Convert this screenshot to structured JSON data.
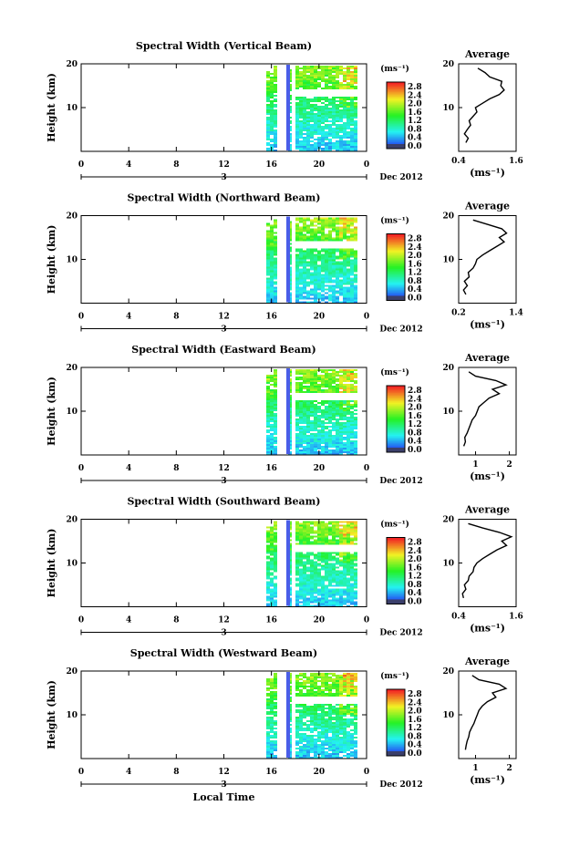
{
  "chart_data": [
    {
      "type": "heatmap",
      "title": "Spectral Width (Vertical Beam)",
      "ylabel": "Height (km)",
      "yticks": [
        "20",
        "10"
      ],
      "xticks": [
        "0",
        "4",
        "8",
        "12",
        "16",
        "20",
        "0"
      ],
      "day_label": "3",
      "date_label": "Dec 2012",
      "colorbar": {
        "unit": "(ms⁻¹)",
        "ticks": [
          "2.8",
          "2.4",
          "2.0",
          "1.6",
          "1.2",
          "0.8",
          "0.4",
          "0.0"
        ]
      },
      "profile": {
        "title": "Average",
        "yticks": [
          "20",
          "10"
        ],
        "xticks": [
          "0.4",
          "1.6"
        ],
        "xlabel": "(ms⁻¹)",
        "xlim": [
          0.4,
          1.6
        ],
        "heights": [
          2,
          3,
          4,
          5,
          6,
          7,
          8,
          9,
          10,
          11,
          12,
          13,
          14,
          15,
          16,
          17,
          18,
          19
        ],
        "values": [
          0.55,
          0.6,
          0.52,
          0.58,
          0.65,
          0.62,
          0.7,
          0.78,
          0.75,
          0.9,
          1.05,
          1.25,
          1.35,
          1.28,
          1.3,
          1.05,
          0.95,
          0.8
        ]
      }
    },
    {
      "type": "heatmap",
      "title": "Spectral Width (Northward Beam)",
      "ylabel": "Height (km)",
      "yticks": [
        "20",
        "10"
      ],
      "xticks": [
        "0",
        "4",
        "8",
        "12",
        "16",
        "20",
        "0"
      ],
      "day_label": "3",
      "date_label": "Dec 2012",
      "colorbar": {
        "unit": "(ms⁻¹)",
        "ticks": [
          "2.8",
          "2.4",
          "2.0",
          "1.6",
          "1.2",
          "0.8",
          "0.4",
          "0.0"
        ]
      },
      "profile": {
        "title": "Average",
        "yticks": [
          "20",
          "10"
        ],
        "xticks": [
          "0.2",
          "1.4"
        ],
        "xlabel": "(ms⁻¹)",
        "xlim": [
          0.2,
          1.4
        ],
        "heights": [
          2,
          3,
          4,
          5,
          6,
          7,
          8,
          9,
          10,
          11,
          12,
          13,
          14,
          15,
          16,
          17,
          18,
          19
        ],
        "values": [
          0.35,
          0.3,
          0.38,
          0.32,
          0.42,
          0.4,
          0.5,
          0.55,
          0.58,
          0.7,
          0.85,
          1.0,
          1.15,
          1.05,
          1.2,
          1.1,
          0.8,
          0.5
        ]
      }
    },
    {
      "type": "heatmap",
      "title": "Spectral Width (Eastward Beam)",
      "ylabel": "Height (km)",
      "yticks": [
        "20",
        "10"
      ],
      "xticks": [
        "0",
        "4",
        "8",
        "12",
        "16",
        "20",
        "0"
      ],
      "day_label": "3",
      "date_label": "Dec 2012",
      "colorbar": {
        "unit": "(ms⁻¹)",
        "ticks": [
          "2.8",
          "2.4",
          "2.0",
          "1.6",
          "1.2",
          "0.8",
          "0.4",
          "0.0"
        ]
      },
      "profile": {
        "title": "Average",
        "yticks": [
          "20",
          "10"
        ],
        "xticks": [
          "1",
          "2"
        ],
        "xlabel": "(ms⁻¹)",
        "xlim": [
          0.5,
          2.2
        ],
        "heights": [
          2,
          3,
          4,
          5,
          6,
          7,
          8,
          9,
          10,
          11,
          12,
          13,
          14,
          15,
          16,
          17,
          18,
          19
        ],
        "values": [
          0.65,
          0.7,
          0.68,
          0.75,
          0.8,
          0.85,
          0.9,
          1.0,
          1.05,
          1.1,
          1.25,
          1.4,
          1.7,
          1.5,
          1.9,
          1.6,
          1.0,
          0.8
        ]
      }
    },
    {
      "type": "heatmap",
      "title": "Spectral Width (Southward Beam)",
      "ylabel": "Height (km)",
      "yticks": [
        "20",
        "10"
      ],
      "xticks": [
        "0",
        "4",
        "8",
        "12",
        "16",
        "20",
        "0"
      ],
      "day_label": "3",
      "date_label": "Dec 2012",
      "colorbar": {
        "unit": "(ms⁻¹)",
        "ticks": [
          "2.8",
          "2.4",
          "2.0",
          "1.6",
          "1.2",
          "0.8",
          "0.4",
          "0.0"
        ]
      },
      "profile": {
        "title": "Average",
        "yticks": [
          "20",
          "10"
        ],
        "xticks": [
          "0.4",
          "1.6"
        ],
        "xlabel": "(ms⁻¹)",
        "xlim": [
          0.4,
          1.6
        ],
        "heights": [
          2,
          3,
          4,
          5,
          6,
          7,
          8,
          9,
          10,
          11,
          12,
          13,
          14,
          15,
          16,
          17,
          18,
          19
        ],
        "values": [
          0.5,
          0.48,
          0.55,
          0.52,
          0.6,
          0.62,
          0.7,
          0.72,
          0.78,
          0.9,
          1.05,
          1.2,
          1.4,
          1.3,
          1.5,
          1.25,
          0.9,
          0.6
        ]
      }
    },
    {
      "type": "heatmap",
      "title": "Spectral Width (Westward Beam)",
      "ylabel": "Height (km)",
      "yticks": [
        "20",
        "10"
      ],
      "xticks": [
        "0",
        "4",
        "8",
        "12",
        "16",
        "20",
        "0"
      ],
      "day_label": "3",
      "date_label": "Dec 2012",
      "xlabel": "Local Time",
      "colorbar": {
        "unit": "(ms⁻¹)",
        "ticks": [
          "2.8",
          "2.4",
          "2.0",
          "1.6",
          "1.2",
          "0.8",
          "0.4",
          "0.0"
        ]
      },
      "profile": {
        "title": "Average",
        "yticks": [
          "20",
          "10"
        ],
        "xticks": [
          "1",
          "2"
        ],
        "xlabel": "(ms⁻¹)",
        "xlim": [
          0.5,
          2.2
        ],
        "heights": [
          2,
          3,
          4,
          5,
          6,
          7,
          8,
          9,
          10,
          11,
          12,
          13,
          14,
          15,
          16,
          17,
          18,
          19
        ],
        "values": [
          0.7,
          0.72,
          0.75,
          0.8,
          0.82,
          0.88,
          0.95,
          1.0,
          1.05,
          1.1,
          1.2,
          1.35,
          1.6,
          1.5,
          1.9,
          1.7,
          1.1,
          0.9
        ]
      }
    }
  ]
}
